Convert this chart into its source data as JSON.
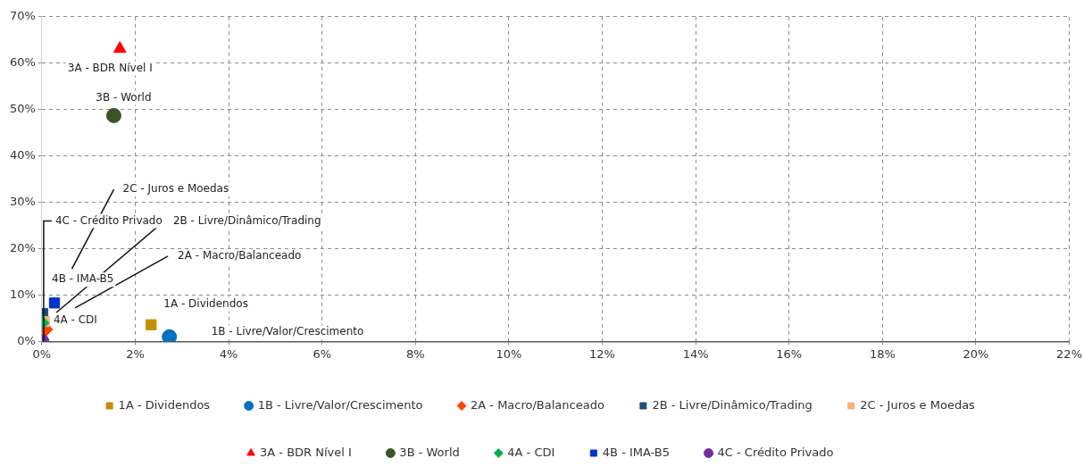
{
  "chart_data": {
    "type": "scatter",
    "grid": true,
    "legend": "bottom",
    "xlim": [
      0,
      22
    ],
    "ylim": [
      0,
      70
    ],
    "xticks": [
      {
        "value": 0,
        "label": "0%"
      },
      {
        "value": 2,
        "label": "2%"
      },
      {
        "value": 4,
        "label": "4%"
      },
      {
        "value": 6,
        "label": "6%"
      },
      {
        "value": 8,
        "label": "8%"
      },
      {
        "value": 10,
        "label": "10%"
      },
      {
        "value": 12,
        "label": "12%"
      },
      {
        "value": 14,
        "label": "14%"
      },
      {
        "value": 16,
        "label": "16%"
      },
      {
        "value": 18,
        "label": "18%"
      },
      {
        "value": 20,
        "label": "20%"
      },
      {
        "value": 22,
        "label": "22%"
      }
    ],
    "yticks": [
      {
        "value": 0,
        "label": "0%"
      },
      {
        "value": 10,
        "label": "10%"
      },
      {
        "value": 20,
        "label": "20%"
      },
      {
        "value": 30,
        "label": "30%"
      },
      {
        "value": 40,
        "label": "40%"
      },
      {
        "value": 50,
        "label": "50%"
      },
      {
        "value": 60,
        "label": "60%"
      },
      {
        "value": 70,
        "label": "70%"
      }
    ],
    "series": [
      {
        "name": "1A - Dividendos",
        "color": "#bf9000",
        "marker": "square",
        "x": [
          2.34
        ],
        "values": [
          3.6
        ]
      },
      {
        "name": "1B - Livre/Valor/Crescimento",
        "color": "#0070c0",
        "marker": "circle",
        "x": [
          2.73
        ],
        "values": [
          1.0
        ]
      },
      {
        "name": "2A - Macro/Balanceado",
        "color": "#ff4000",
        "marker": "diamond",
        "x": [
          0.08
        ],
        "values": [
          2.6
        ]
      },
      {
        "name": "2B - Livre/Dinâmico/Trading",
        "color": "#1f4e79",
        "marker": "square",
        "x": [
          0.02
        ],
        "values": [
          6.0
        ]
      },
      {
        "name": "2C - Juros e Moedas",
        "color": "#f4b183",
        "marker": "square",
        "x": [
          0.05
        ],
        "values": [
          4.3
        ]
      },
      {
        "name": "3A - BDR Nível I",
        "color": "#ff0000",
        "marker": "triangle",
        "x": [
          1.67
        ],
        "values": [
          63.1
        ]
      },
      {
        "name": "3B - World",
        "color": "#375623",
        "marker": "circle",
        "x": [
          1.54
        ],
        "values": [
          48.7
        ]
      },
      {
        "name": "4A - CDI",
        "color": "#00b050",
        "marker": "diamond",
        "x": [
          0.0
        ],
        "values": [
          4.0
        ]
      },
      {
        "name": "4B - IMA-B5",
        "color": "#0033cc",
        "marker": "square",
        "x": [
          0.27
        ],
        "values": [
          8.3
        ]
      },
      {
        "name": "4C - Crédito Privado",
        "color": "#7030a0",
        "marker": "circle",
        "x": [
          0.0
        ],
        "values": [
          0.0
        ]
      }
    ]
  }
}
